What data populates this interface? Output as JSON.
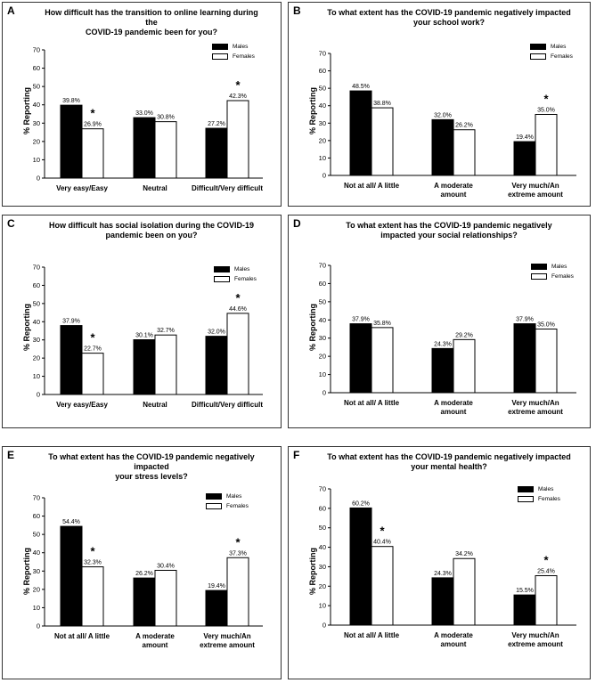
{
  "colors": {
    "males": "#000000",
    "females": "#ffffff",
    "axis": "#000000"
  },
  "chart_data": [
    {
      "panel": "A",
      "type": "bar",
      "title_lines": [
        "How difficult has the transition to online learning during the",
        "COVID-19 pandemic been for you?"
      ],
      "ylabel": "% Reporting",
      "ylim": [
        0,
        70
      ],
      "yticks": [
        "0",
        "10",
        "20",
        "30",
        "40",
        "50",
        "60",
        "70"
      ],
      "categories": [
        [
          "Very easy/Easy"
        ],
        [
          "Neutral"
        ],
        [
          "Difficult/Very difficult"
        ]
      ],
      "series": [
        {
          "name": "Males",
          "values": [
            39.8,
            33.0,
            27.2
          ],
          "labels": [
            "39.8%",
            "33.0%",
            "27.2%"
          ]
        },
        {
          "name": "Females",
          "values": [
            26.9,
            30.8,
            42.3
          ],
          "labels": [
            "26.9%",
            "30.8%",
            "42.3%"
          ]
        }
      ],
      "significance": [
        {
          "category": 0,
          "mark": "*"
        },
        {
          "category": 2,
          "mark": "*"
        }
      ],
      "legend_position": "top-right",
      "grid": false
    },
    {
      "panel": "B",
      "type": "bar",
      "title_lines": [
        "To what extent has the COVID-19 pandemic negatively impacted",
        "your school work?"
      ],
      "ylabel": "% Reporting",
      "ylim": [
        0,
        70
      ],
      "yticks": [
        "0",
        "10",
        "20",
        "30",
        "40",
        "50",
        "60",
        "70"
      ],
      "categories": [
        [
          "Not at all/ A little"
        ],
        [
          "A moderate",
          "amount"
        ],
        [
          "Very much/An",
          "extreme amount"
        ]
      ],
      "series": [
        {
          "name": "Males",
          "values": [
            48.5,
            32.0,
            19.4
          ],
          "labels": [
            "48.5%",
            "32.0%",
            "19.4%"
          ]
        },
        {
          "name": "Females",
          "values": [
            38.8,
            26.2,
            35.0
          ],
          "labels": [
            "38.8%",
            "26.2%",
            "35.0%"
          ]
        }
      ],
      "significance": [
        {
          "category": 2,
          "mark": "*"
        }
      ],
      "legend_position": "top-right",
      "grid": false
    },
    {
      "panel": "C",
      "type": "bar",
      "title_lines": [
        "How difficult has social isolation during the COVID-19",
        "pandemic been on you?"
      ],
      "ylabel": "% Reporting",
      "ylim": [
        0,
        70
      ],
      "yticks": [
        "0",
        "10",
        "20",
        "30",
        "40",
        "50",
        "60",
        "70"
      ],
      "categories": [
        [
          "Very easy/Easy"
        ],
        [
          "Neutral"
        ],
        [
          "Difficult/Very difficult"
        ]
      ],
      "series": [
        {
          "name": "Males",
          "values": [
            37.9,
            30.1,
            32.0
          ],
          "labels": [
            "37.9%",
            "30.1%",
            "32.0%"
          ]
        },
        {
          "name": "Females",
          "values": [
            22.7,
            32.7,
            44.6
          ],
          "labels": [
            "22.7%",
            "32.7%",
            "44.6%"
          ]
        }
      ],
      "significance": [
        {
          "category": 0,
          "mark": "*"
        },
        {
          "category": 2,
          "mark": "*"
        }
      ],
      "legend_position": "top-right",
      "grid": false
    },
    {
      "panel": "D",
      "type": "bar",
      "title_lines": [
        "To what extent has the COVID-19 pandemic negatively",
        "impacted your social relationships?"
      ],
      "ylabel": "% Reporting",
      "ylim": [
        0,
        70
      ],
      "yticks": [
        "0",
        "10",
        "20",
        "30",
        "40",
        "50",
        "60",
        "70"
      ],
      "categories": [
        [
          "Not at all/ A little"
        ],
        [
          "A moderate",
          "amount"
        ],
        [
          "Very much/An",
          "extreme amount"
        ]
      ],
      "series": [
        {
          "name": "Males",
          "values": [
            37.9,
            24.3,
            37.9
          ],
          "labels": [
            "37.9%",
            "24.3%",
            "37.9%"
          ]
        },
        {
          "name": "Females",
          "values": [
            35.8,
            29.2,
            35.0
          ],
          "labels": [
            "35.8%",
            "29.2%",
            "35.0%"
          ]
        }
      ],
      "significance": [],
      "legend_position": "top-right",
      "grid": false
    },
    {
      "panel": "E",
      "type": "bar",
      "title_lines": [
        "To what extent has the COVID-19 pandemic negatively impacted",
        "your stress levels?"
      ],
      "ylabel": "% Reporting",
      "ylim": [
        0,
        70
      ],
      "yticks": [
        "0",
        "10",
        "20",
        "30",
        "40",
        "50",
        "60",
        "70"
      ],
      "categories": [
        [
          "Not at all/ A little"
        ],
        [
          "A moderate",
          "amount"
        ],
        [
          "Very much/An",
          "extreme amount"
        ]
      ],
      "series": [
        {
          "name": "Males",
          "values": [
            54.4,
            26.2,
            19.4
          ],
          "labels": [
            "54.4%",
            "26.2%",
            "19.4%"
          ]
        },
        {
          "name": "Females",
          "values": [
            32.3,
            30.4,
            37.3
          ],
          "labels": [
            "32.3%",
            "30.4%",
            "37.3%"
          ]
        }
      ],
      "significance": [
        {
          "category": 0,
          "mark": "*"
        },
        {
          "category": 2,
          "mark": "*"
        }
      ],
      "legend_position": "top-right",
      "grid": false
    },
    {
      "panel": "F",
      "type": "bar",
      "title_lines": [
        "To what extent has the COVID-19 pandemic negatively impacted",
        "your mental health?"
      ],
      "ylabel": "% Reporting",
      "ylim": [
        0,
        70
      ],
      "yticks": [
        "0",
        "10",
        "20",
        "30",
        "40",
        "50",
        "60",
        "70"
      ],
      "categories": [
        [
          "Not at all/ A little"
        ],
        [
          "A moderate",
          "amount"
        ],
        [
          "Very much/An",
          "extreme amount"
        ]
      ],
      "series": [
        {
          "name": "Males",
          "values": [
            60.2,
            24.3,
            15.5
          ],
          "labels": [
            "60.2%",
            "24.3%",
            "15.5%"
          ]
        },
        {
          "name": "Females",
          "values": [
            40.4,
            34.2,
            25.4
          ],
          "labels": [
            "40.4%",
            "34.2%",
            "25.4%"
          ]
        }
      ],
      "significance": [
        {
          "category": 0,
          "mark": "*"
        },
        {
          "category": 2,
          "mark": "*"
        }
      ],
      "legend_position": "top-right",
      "grid": false
    }
  ]
}
